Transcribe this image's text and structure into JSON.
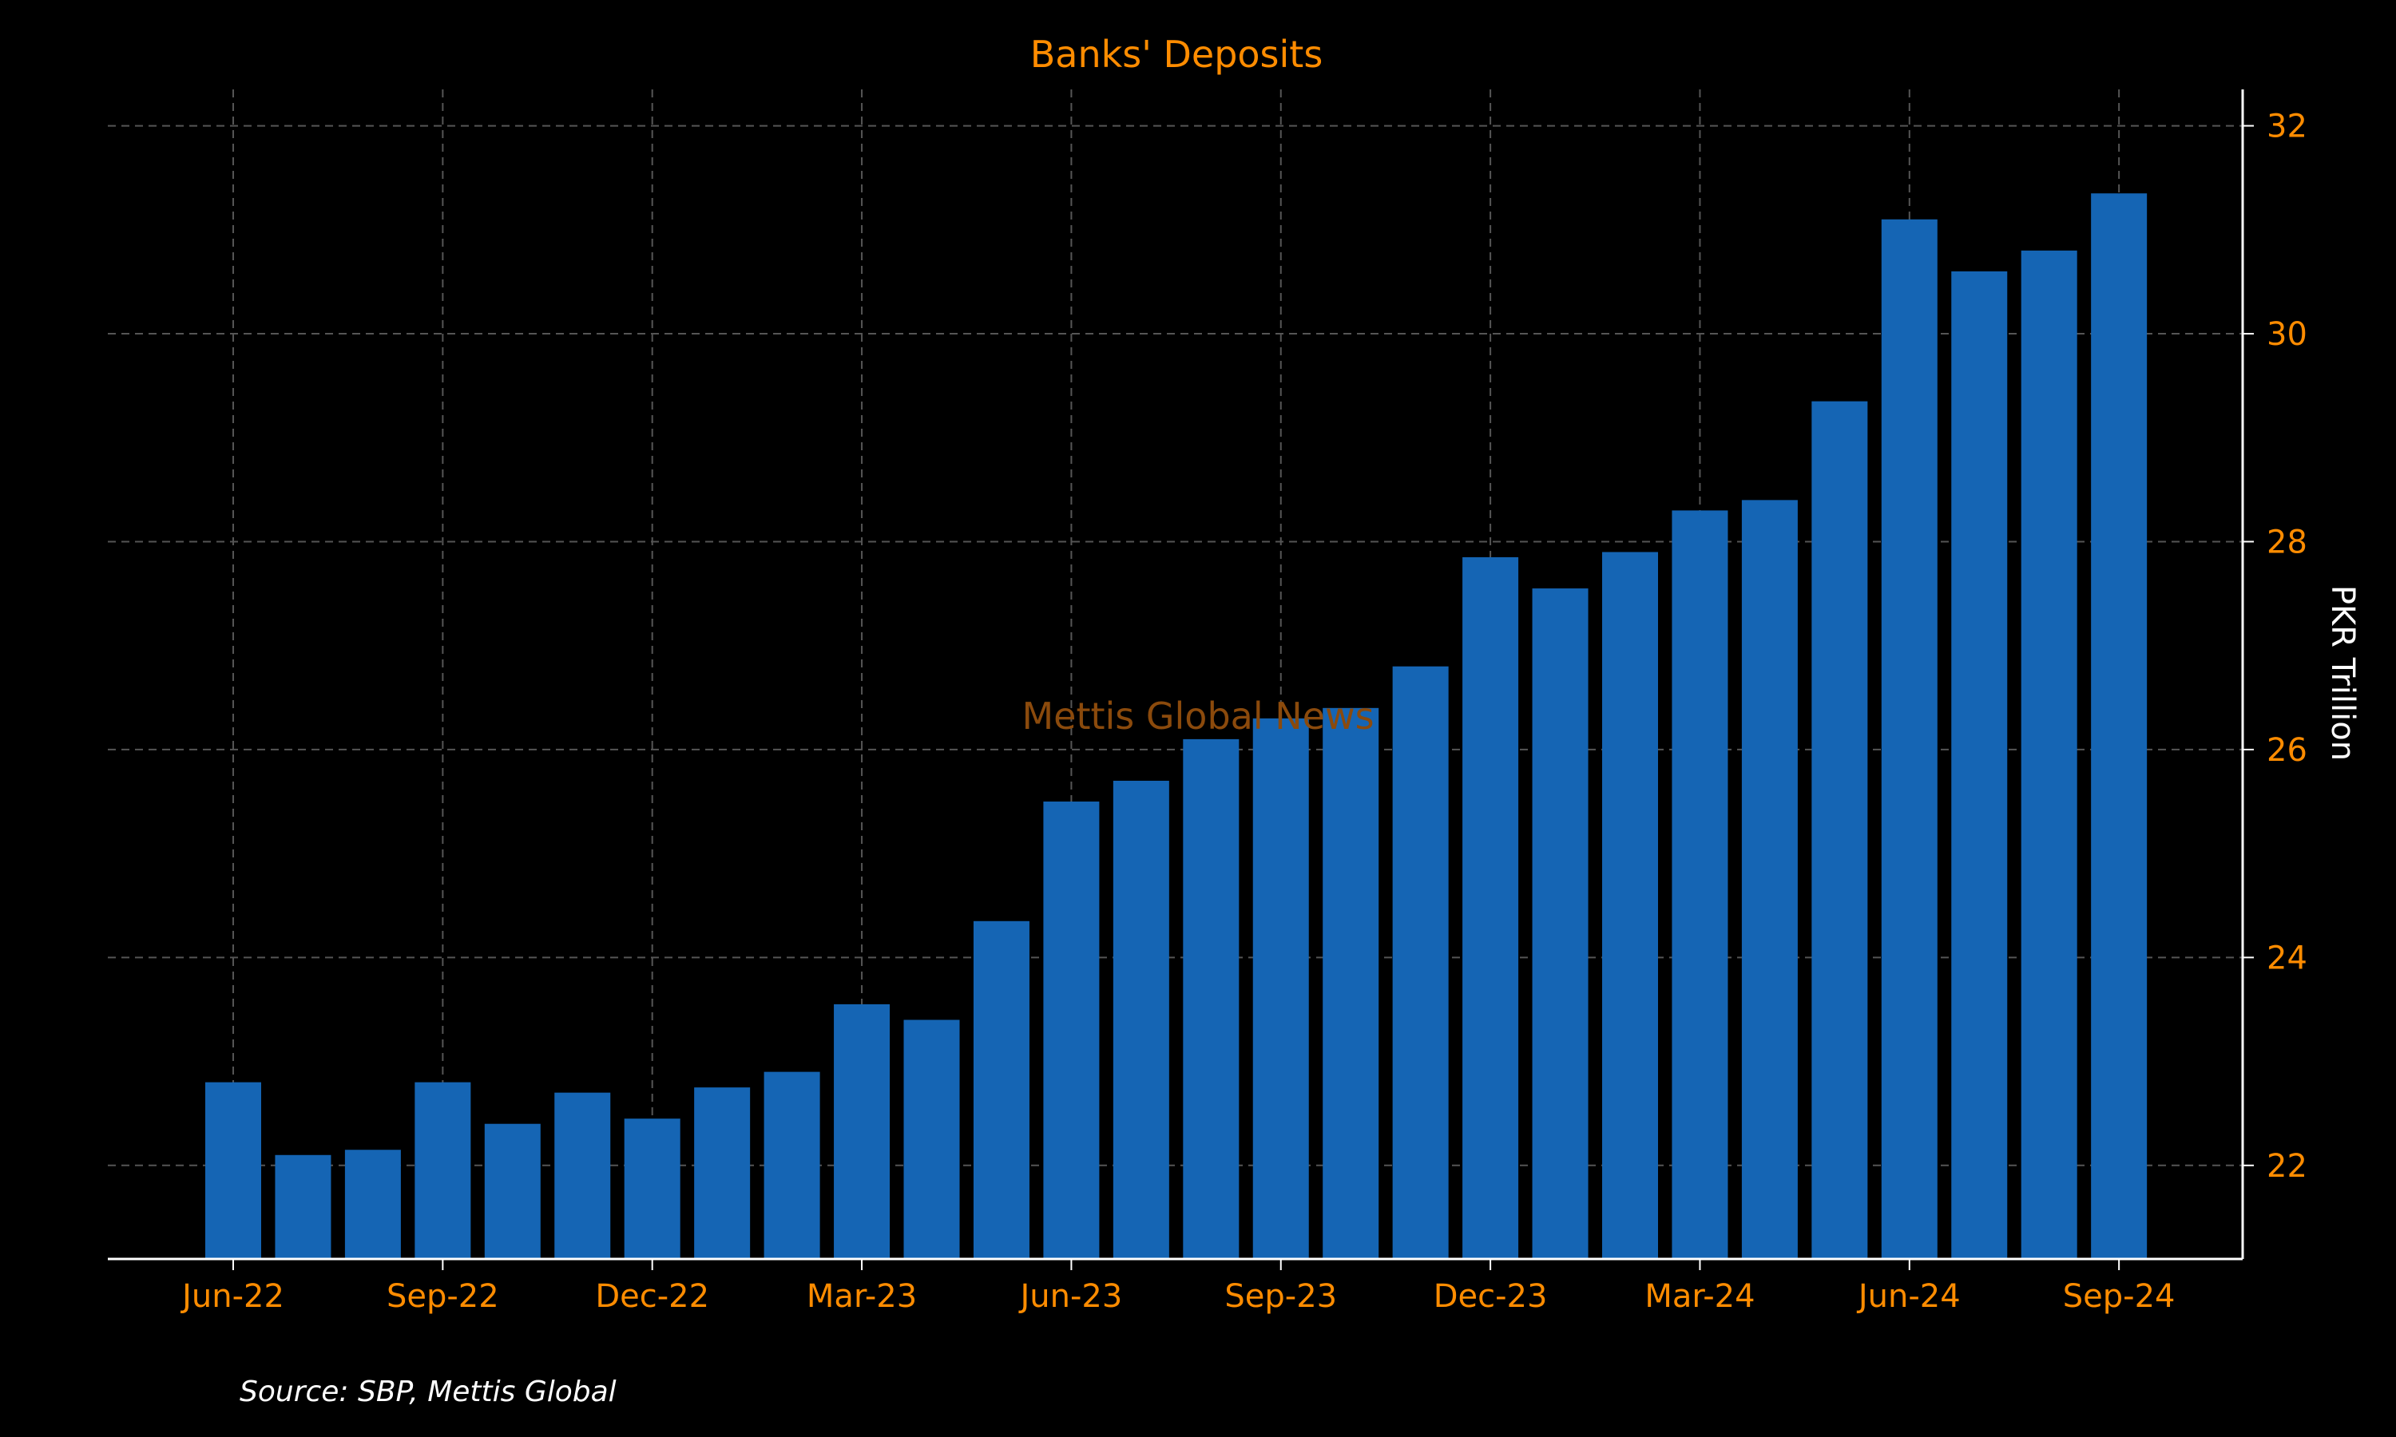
{
  "chart_data": {
    "type": "bar",
    "title": "Banks' Deposits",
    "ylabel": "PKR Trillion",
    "source": "Source: SBP, Mettis Global",
    "watermark": "Mettis Global News",
    "ylim": [
      21.1,
      32.35
    ],
    "yticks": [
      22,
      24,
      26,
      28,
      30,
      32
    ],
    "xtick_labels": [
      "Jun-22",
      "Sep-22",
      "Dec-22",
      "Mar-23",
      "Jun-23",
      "Sep-23",
      "Dec-23",
      "Mar-24",
      "Jun-24",
      "Sep-24"
    ],
    "xtick_positions": [
      0,
      3,
      6,
      9,
      12,
      15,
      18,
      21,
      24,
      27
    ],
    "categories": [
      "Jun-22",
      "Jul-22",
      "Aug-22",
      "Sep-22",
      "Oct-22",
      "Nov-22",
      "Dec-22",
      "Jan-23",
      "Feb-23",
      "Mar-23",
      "Apr-23",
      "May-23",
      "Jun-23",
      "Jul-23",
      "Aug-23",
      "Sep-23",
      "Oct-23",
      "Nov-23",
      "Dec-23",
      "Jan-24",
      "Feb-24",
      "Mar-24",
      "Apr-24",
      "May-24",
      "Jun-24",
      "Jul-24",
      "Aug-24",
      "Sep-24"
    ],
    "values": [
      22.8,
      22.1,
      22.15,
      22.8,
      22.4,
      22.7,
      22.45,
      22.75,
      22.9,
      23.55,
      23.4,
      24.35,
      25.5,
      25.7,
      26.1,
      26.3,
      26.4,
      26.8,
      27.85,
      27.55,
      27.9,
      28.3,
      28.4,
      29.35,
      31.1,
      30.6,
      30.8,
      31.35
    ],
    "grid": true,
    "y_axis_side": "right",
    "colors": {
      "background": "#000000",
      "bar": "#1565b4",
      "text_accent": "#ff8c00",
      "axis": "#ffffff",
      "grid": "#555555",
      "watermark": "#8b4a0c"
    }
  }
}
